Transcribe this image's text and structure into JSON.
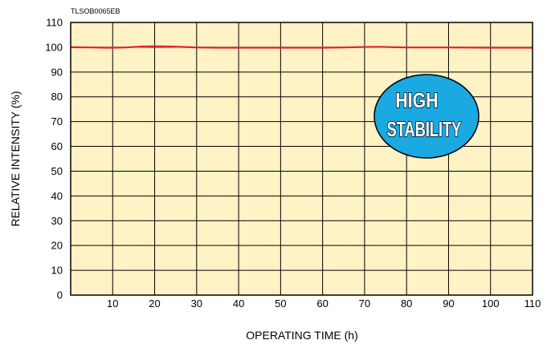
{
  "doc_code": "TLSOB0065EB",
  "badge": {
    "line1": "HIGH",
    "line2": "STABILITY",
    "fill_color": "#1aa9e0",
    "text_color": "#ffffff"
  },
  "colors": {
    "plot_background": "#fff2c4",
    "grid": "#000000",
    "series_line": "#e3262e"
  },
  "chart_data": {
    "type": "line",
    "title": "",
    "xlabel": "OPERATING TIME (h)",
    "ylabel": "RELATIVE INTENSITY (%)",
    "xlim": [
      0,
      110
    ],
    "ylim": [
      0,
      110
    ],
    "x_ticks": [
      10,
      20,
      30,
      40,
      50,
      60,
      70,
      80,
      90,
      100,
      110
    ],
    "y_ticks": [
      0,
      10,
      20,
      30,
      40,
      50,
      60,
      70,
      80,
      90,
      100,
      110
    ],
    "grid": true,
    "legend": "none",
    "series": [
      {
        "x": [
          0,
          5,
          10,
          13,
          17,
          20,
          24,
          27,
          30,
          35,
          40,
          50,
          60,
          65,
          70,
          73,
          77,
          80,
          90,
          100,
          110
        ],
        "y": [
          100,
          99.9,
          99.8,
          99.9,
          100.3,
          100.4,
          100.3,
          100.1,
          99.9,
          99.8,
          99.8,
          99.8,
          99.8,
          99.9,
          100.1,
          100.2,
          100.0,
          99.9,
          99.9,
          99.8,
          99.8
        ]
      }
    ]
  }
}
